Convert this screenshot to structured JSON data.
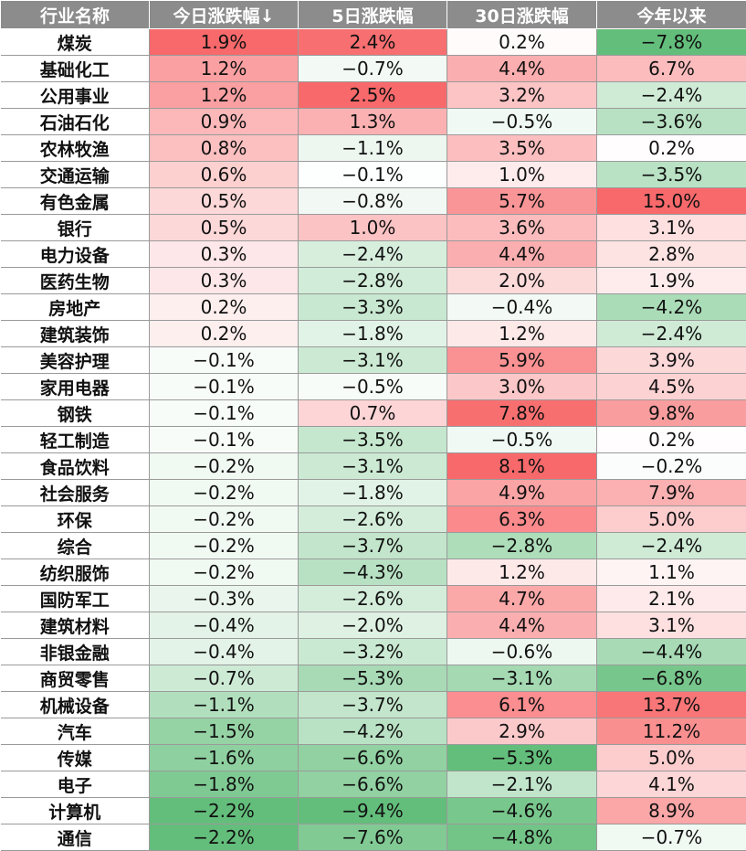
{
  "chart_data": {
    "type": "table",
    "columns": [
      "行业名称",
      "今日涨跌幅↓",
      "5日涨跌幅",
      "30日涨跌幅",
      "今年以来"
    ],
    "sort_indicator": "↓",
    "color_scale": {
      "positive": "#f8696b",
      "negative": "#63be7b",
      "neutral": "#ffffff"
    },
    "rows": [
      {
        "name": "煤炭",
        "values": [
          "1.9%",
          "2.4%",
          "0.2%",
          "−7.8%"
        ]
      },
      {
        "name": "基础化工",
        "values": [
          "1.2%",
          "−0.7%",
          "4.4%",
          "6.7%"
        ]
      },
      {
        "name": "公用事业",
        "values": [
          "1.2%",
          "2.5%",
          "3.2%",
          "−2.4%"
        ]
      },
      {
        "name": "石油石化",
        "values": [
          "0.9%",
          "1.3%",
          "−0.5%",
          "−3.6%"
        ]
      },
      {
        "name": "农林牧渔",
        "values": [
          "0.8%",
          "−1.1%",
          "3.5%",
          "0.2%"
        ]
      },
      {
        "name": "交通运输",
        "values": [
          "0.6%",
          "−0.1%",
          "1.0%",
          "−3.5%"
        ]
      },
      {
        "name": "有色金属",
        "values": [
          "0.5%",
          "−0.8%",
          "5.7%",
          "15.0%"
        ]
      },
      {
        "name": "银行",
        "values": [
          "0.5%",
          "1.0%",
          "3.6%",
          "3.1%"
        ]
      },
      {
        "name": "电力设备",
        "values": [
          "0.3%",
          "−2.4%",
          "4.4%",
          "2.8%"
        ]
      },
      {
        "name": "医药生物",
        "values": [
          "0.3%",
          "−2.8%",
          "2.0%",
          "1.9%"
        ]
      },
      {
        "name": "房地产",
        "values": [
          "0.2%",
          "−3.3%",
          "−0.4%",
          "−4.2%"
        ]
      },
      {
        "name": "建筑装饰",
        "values": [
          "0.2%",
          "−1.8%",
          "1.2%",
          "−2.4%"
        ]
      },
      {
        "name": "美容护理",
        "values": [
          "−0.1%",
          "−3.1%",
          "5.9%",
          "3.9%"
        ]
      },
      {
        "name": "家用电器",
        "values": [
          "−0.1%",
          "−0.5%",
          "3.0%",
          "4.5%"
        ]
      },
      {
        "name": "钢铁",
        "values": [
          "−0.1%",
          "0.7%",
          "7.8%",
          "9.8%"
        ]
      },
      {
        "name": "轻工制造",
        "values": [
          "−0.1%",
          "−3.5%",
          "−0.5%",
          "0.2%"
        ]
      },
      {
        "name": "食品饮料",
        "values": [
          "−0.2%",
          "−3.1%",
          "8.1%",
          "−0.2%"
        ]
      },
      {
        "name": "社会服务",
        "values": [
          "−0.2%",
          "−1.8%",
          "4.9%",
          "7.9%"
        ]
      },
      {
        "name": "环保",
        "values": [
          "−0.2%",
          "−2.6%",
          "6.3%",
          "5.0%"
        ]
      },
      {
        "name": "综合",
        "values": [
          "−0.2%",
          "−3.7%",
          "−2.8%",
          "−2.4%"
        ]
      },
      {
        "name": "纺织服饰",
        "values": [
          "−0.2%",
          "−4.3%",
          "1.2%",
          "1.1%"
        ]
      },
      {
        "name": "国防军工",
        "values": [
          "−0.3%",
          "−2.6%",
          "4.7%",
          "2.1%"
        ]
      },
      {
        "name": "建筑材料",
        "values": [
          "−0.4%",
          "−2.0%",
          "4.4%",
          "3.1%"
        ]
      },
      {
        "name": "非银金融",
        "values": [
          "−0.4%",
          "−3.2%",
          "−0.6%",
          "−4.4%"
        ]
      },
      {
        "name": "商贸零售",
        "values": [
          "−0.7%",
          "−5.3%",
          "−3.1%",
          "−6.8%"
        ]
      },
      {
        "name": "机械设备",
        "values": [
          "−1.1%",
          "−3.7%",
          "6.1%",
          "13.7%"
        ]
      },
      {
        "name": "汽车",
        "values": [
          "−1.5%",
          "−4.2%",
          "2.9%",
          "11.2%"
        ]
      },
      {
        "name": "传媒",
        "values": [
          "−1.6%",
          "−6.6%",
          "−5.3%",
          "5.0%"
        ]
      },
      {
        "name": "电子",
        "values": [
          "−1.8%",
          "−6.6%",
          "−2.1%",
          "4.1%"
        ]
      },
      {
        "name": "计算机",
        "values": [
          "−2.2%",
          "−9.4%",
          "−4.6%",
          "8.9%"
        ]
      },
      {
        "name": "通信",
        "values": [
          "−2.2%",
          "−7.6%",
          "−4.8%",
          "−0.7%"
        ]
      }
    ]
  }
}
